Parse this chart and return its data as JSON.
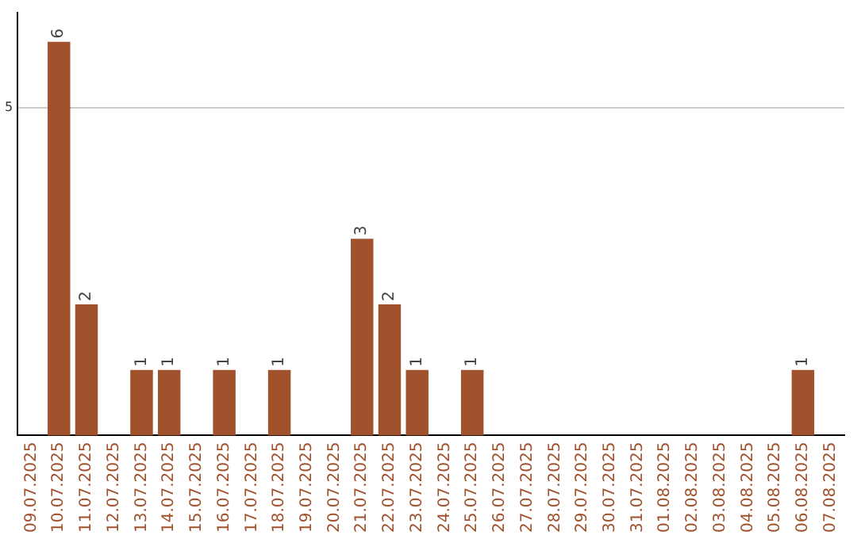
{
  "chart_data": {
    "type": "bar",
    "categories": [
      "09.07.2025",
      "10.07.2025",
      "11.07.2025",
      "12.07.2025",
      "13.07.2025",
      "14.07.2025",
      "15.07.2025",
      "16.07.2025",
      "17.07.2025",
      "18.07.2025",
      "19.07.2025",
      "20.07.2025",
      "21.07.2025",
      "22.07.2025",
      "23.07.2025",
      "24.07.2025",
      "25.07.2025",
      "26.07.2025",
      "27.07.2025",
      "28.07.2025",
      "29.07.2025",
      "30.07.2025",
      "31.07.2025",
      "01.08.2025",
      "02.08.2025",
      "03.08.2025",
      "04.08.2025",
      "05.08.2025",
      "06.08.2025",
      "07.08.2025"
    ],
    "values": [
      null,
      6,
      2,
      null,
      1,
      1,
      null,
      1,
      null,
      1,
      null,
      null,
      3,
      2,
      1,
      null,
      1,
      null,
      null,
      null,
      null,
      null,
      null,
      null,
      null,
      null,
      null,
      null,
      1,
      null
    ],
    "color": "#a0522d",
    "ylim": [
      0,
      6.45
    ],
    "yticks": [
      5
    ],
    "grid": "y",
    "data_labels": true,
    "legend": false
  }
}
